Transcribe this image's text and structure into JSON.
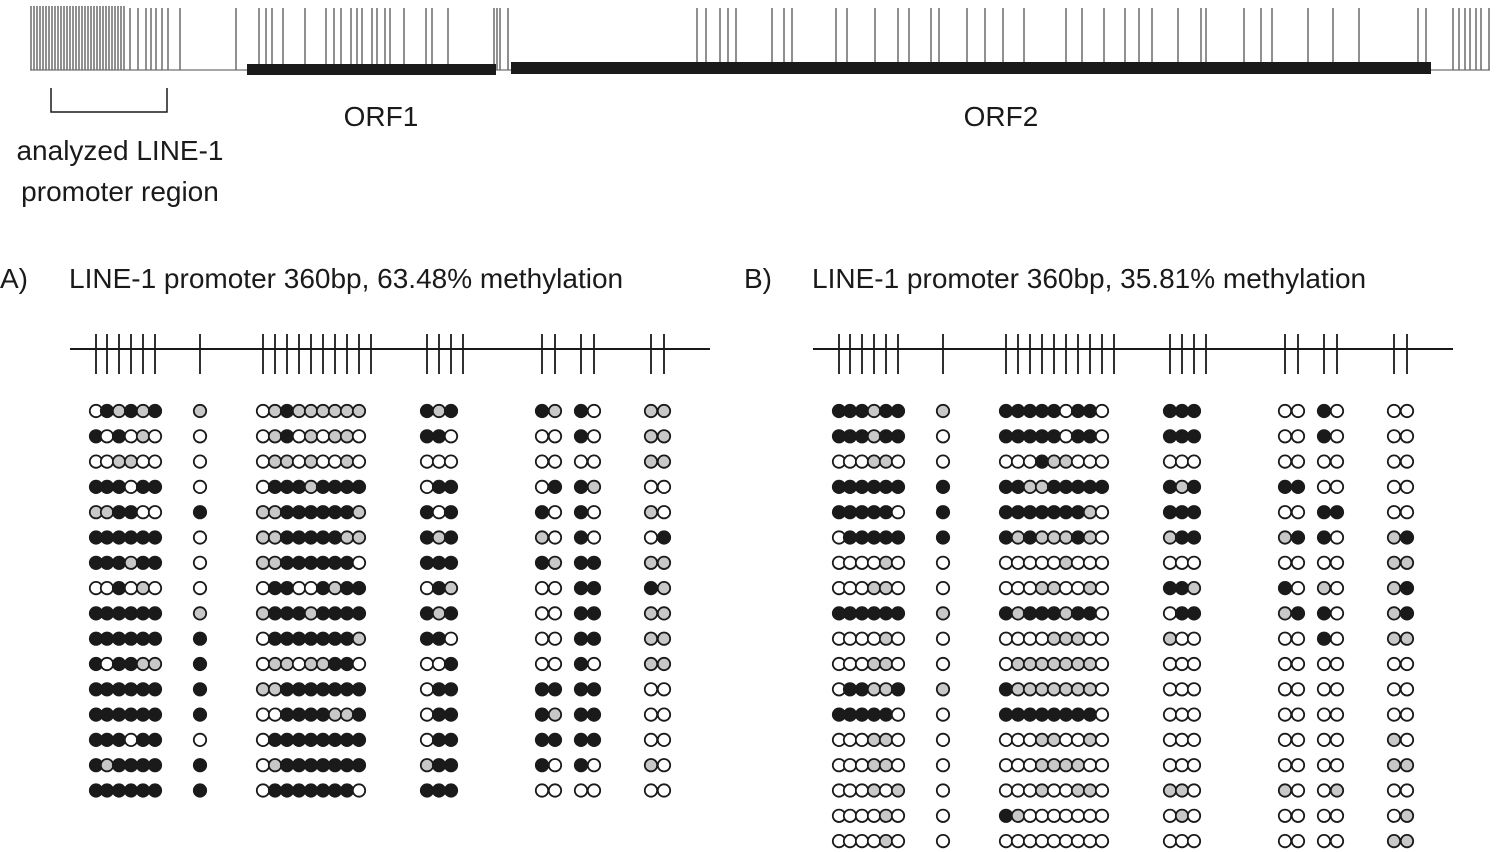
{
  "labels": {
    "orf1": "ORF1",
    "orf2": "ORF2",
    "region_line1": "analyzed LINE-1",
    "region_line2": "promoter region"
  },
  "colors": {
    "methylated": "#1a1a1a",
    "partial": "#c8c8c8",
    "unmethylated": "#ffffff",
    "line": "#1a1a1a",
    "tick": "#6a6a6a"
  },
  "legend_codes": {
    "M": "methylated",
    "P": "partial",
    "U": "unmethylated"
  },
  "panels": [
    {
      "letter": "A)",
      "title": "LINE-1 promoter 360bp, 63.48% methylation",
      "rows": [
        "UMPMPM|P|UPMPPPPPP|MPM|MP.MU|PP",
        "MUMUPU|U|UPMUPUPPU|MMU|UU.MU|PP",
        "UUPPUU|U|UPPUPUUPU|UUU|UU.UU|PP",
        "MMMUMM|U|UMMMPMMMM|UMM|UM.MP|UU",
        "PPMMUU|M|PPMMMMMMP|MUM|MU.MU|PU",
        "MMMMMM|U|PPMMMMMPP|MPM|PU.MU|UM",
        "MMMPMM|U|PPMMMMMMU|MMM|MP.MM|PP",
        "UUMUPU|U|UMMUUMPMM|UMP|UU.MM|MP",
        "MMMMMM|P|PMMMPMMMM|MPM|UU.MM|PP",
        "MMMMMM|M|UMMMMMMMP|MMU|UU.MM|PP",
        "MUMMPP|M|UPPUPPMMU|UUM|UU.MU|PP",
        "MMMMMM|M|PPMMMMMMM|UMM|MM.MM|UU",
        "MMMMMM|M|UUMMMMPPM|UMM|MP.MM|UU",
        "MMMUMM|U|UMMMMMMMM|UMM|MM.MM|UU",
        "MPMMMM|M|UPMMMMMMM|PMM|MU.MU|PU",
        "MMMMMM|M|UMMMMMMMU|MMM|UU.UU|UU"
      ]
    },
    {
      "letter": "B)",
      "title": "LINE-1 promoter 360bp, 35.81% methylation",
      "rows": [
        "MMMPMM|P|MMMMMUMMU|MMM|UU.MU|UU",
        "MMMPMM|U|MMMMMUMMU|MMM|UU.MU|UU",
        "UUUPPU|U|UUUMPPUUU|UUU|UU.UU|UU",
        "MMMMMM|M|MMPPMMMMM|MPM|MM.UU|UU",
        "MMMMMU|M|MMMMMMMPU|MMM|UU.MM|UU",
        "UMMMMM|M|MPMPPPMPU|PMM|PM.MU|PM",
        "UUUUPU|U|UUUUUPUUU|UUU|UU.UU|PP",
        "UUUPPU|U|UUUPPUUPU|MMP|MU.PU|PM",
        "MMMMMM|P|MPMMMPMMU|UMM|PM.MU|PM",
        "UUUUPU|U|UUUUPPPUU|PUU|UU.MU|PP",
        "UUUPPU|U|UPPPPPPPU|UUU|UU.UU|UU",
        "UMMPPM|P|MPPPPPPPU|UUU|UU.UU|UU",
        "MMMMMU|U|MMMMMMMMU|UUU|UU.UU|UU",
        "UUUPPU|U|UUUPPUUPU|UUU|UU.UU|PU",
        "UUUPPU|U|UUUPPPPUU|UUU|UU.UU|PP",
        "UUUPUP|U|UUUPUUPPU|PPU|PU.UP|UU",
        "UUUUPU|U|MPUUUUUUU|UPU|UU.UU|UP",
        "UUUUPU|U|UUUUUUUUU|UUU|UU.UU|PP"
      ]
    }
  ]
}
